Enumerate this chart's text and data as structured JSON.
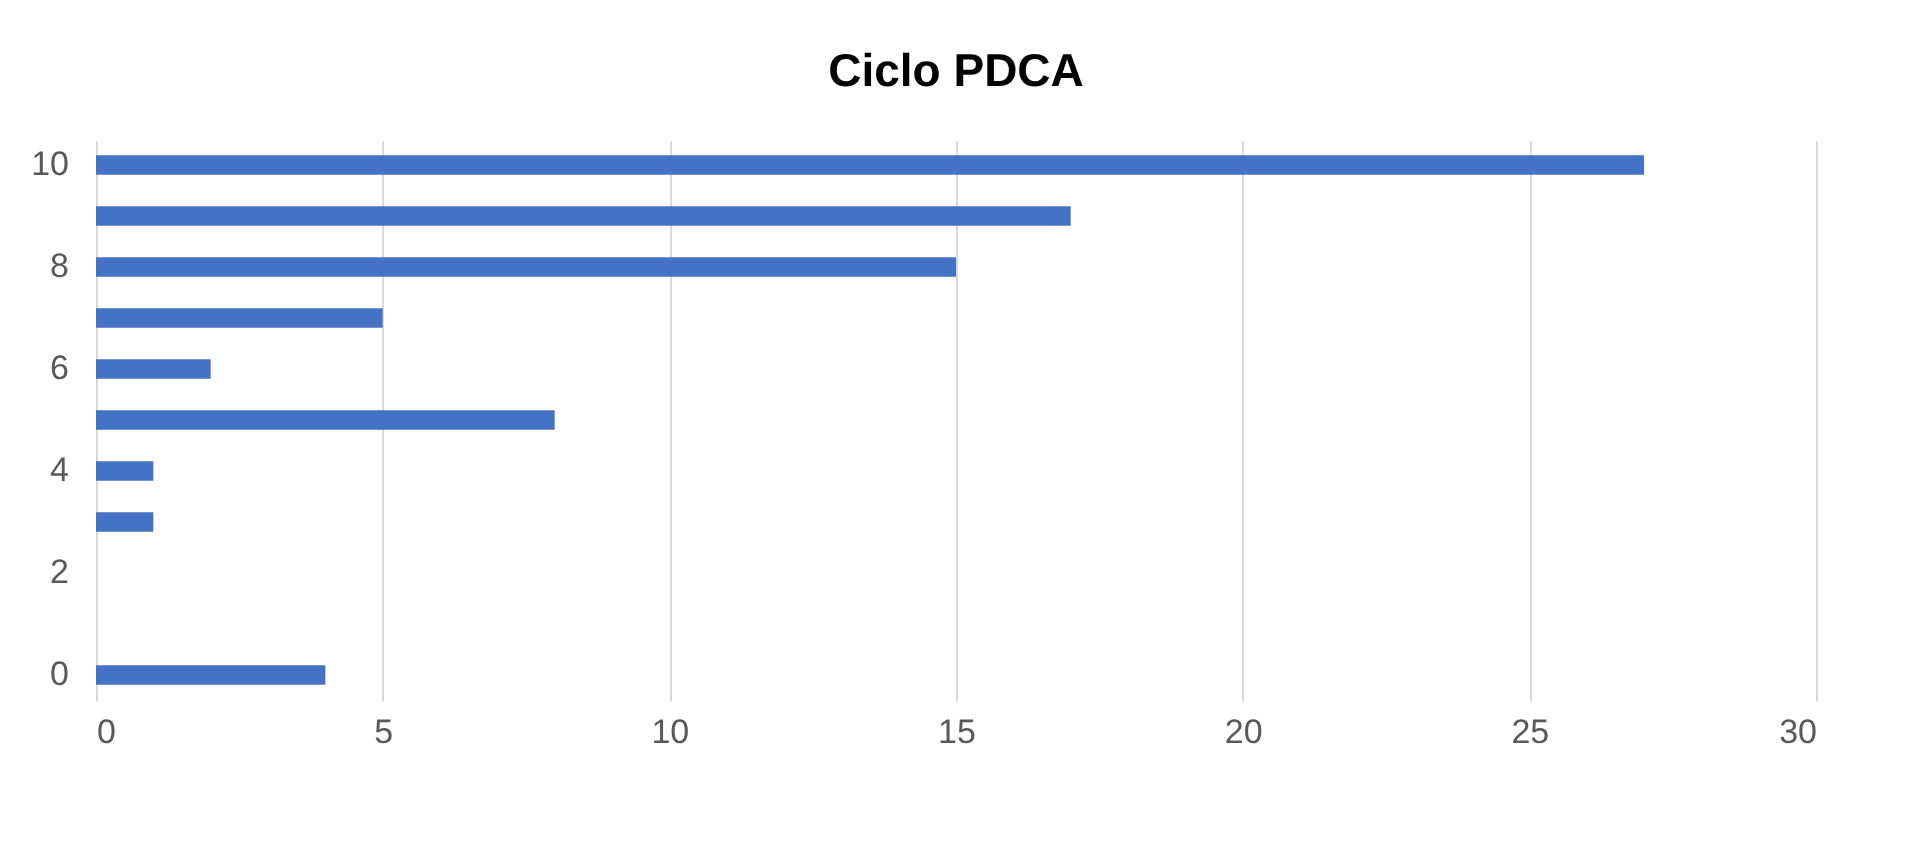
{
  "chart_data": {
    "type": "bar",
    "orientation": "horizontal",
    "title": "Ciclo PDCA",
    "categories": [
      "10",
      null,
      "8",
      null,
      "6",
      null,
      "4",
      null,
      "2",
      null,
      "0"
    ],
    "values": [
      27,
      17,
      15,
      5,
      2,
      8,
      1,
      1,
      0,
      0,
      4
    ],
    "color": "#4472c4",
    "xlim": [
      0,
      30
    ],
    "xticks": [
      0,
      5,
      10,
      15,
      20,
      25,
      30
    ],
    "grid": "x"
  }
}
